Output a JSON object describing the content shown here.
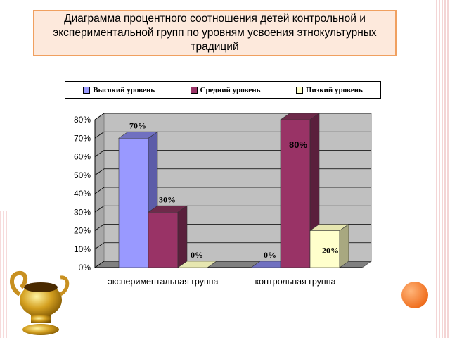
{
  "title": "Диаграмма процентного соотношения детей контрольной и экспериментальной групп по уровням усвоения этнокультурных традиций",
  "colors": {
    "high": "#9999ff",
    "medium": "#993366",
    "low": "#ffffcc",
    "wall": "#c0c0c0",
    "accent": "#f07020"
  },
  "chart_data": {
    "type": "bar",
    "categories": [
      "экспериментальная группа",
      "контрольная группа"
    ],
    "series": [
      {
        "name": "Высокий уровень",
        "values": [
          70,
          0
        ],
        "labels": [
          "70%",
          "0%"
        ]
      },
      {
        "name": "Средний уровень",
        "values": [
          30,
          80
        ],
        "labels": [
          "30%",
          "80%"
        ]
      },
      {
        "name": "Пизкий уровень",
        "values": [
          0,
          20
        ],
        "labels": [
          "0%",
          "20%"
        ]
      }
    ],
    "yticks": [
      "0%",
      "10%",
      "20%",
      "30%",
      "40%",
      "50%",
      "60%",
      "70%",
      "80%"
    ],
    "ylim": [
      0,
      80
    ],
    "legend_position": "top",
    "grid": true
  }
}
